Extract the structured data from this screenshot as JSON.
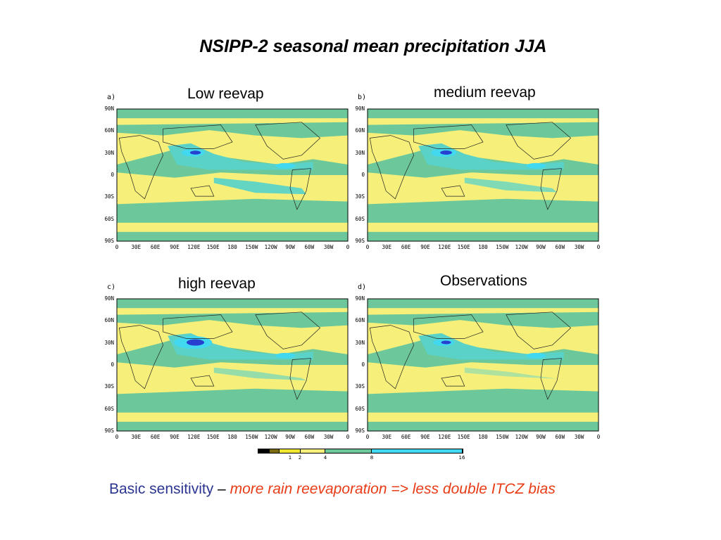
{
  "slide": {
    "title": "NSIPP-2 seasonal mean precipitation  JJA",
    "caption": {
      "lead": "Basic sensitivity",
      "dash": " – ",
      "emphasis": "more rain reevaporation => less double ITCZ bias"
    }
  },
  "panels": [
    {
      "letter": "a)",
      "title": "Low reevap",
      "itcz_strength": 0.55,
      "double_itcz": 0.9
    },
    {
      "letter": "b)",
      "title": "medium reevap",
      "itcz_strength": 0.6,
      "double_itcz": 0.6
    },
    {
      "letter": "c)",
      "title": "high reevap",
      "itcz_strength": 0.9,
      "double_itcz": 0.35
    },
    {
      "letter": "d)",
      "title": "Observations",
      "itcz_strength": 0.5,
      "double_itcz": 0.1
    }
  ],
  "map_axes": {
    "lat_ticks": [
      "90N",
      "60N",
      "30N",
      "0",
      "30S",
      "60S",
      "90S"
    ],
    "lon_ticks": [
      "0",
      "30E",
      "60E",
      "90E",
      "120E",
      "150E",
      "180",
      "150W",
      "120W",
      "90W",
      "60W",
      "30W",
      "0"
    ]
  },
  "colorbar": {
    "labels": [
      "1",
      "2",
      "4",
      "8",
      "16"
    ],
    "colors": [
      "#000000",
      "#7a6a10",
      "#f0e830",
      "#f6f07a",
      "#6cc89a",
      "#5ad2c8",
      "#42d8f0"
    ]
  }
}
